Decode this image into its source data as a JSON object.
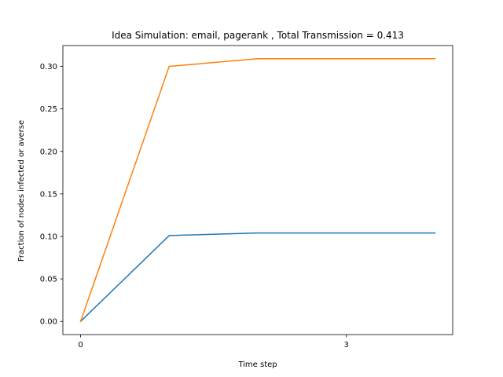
{
  "chart_data": {
    "type": "line",
    "title": "Idea Simulation: email, pagerank , Total Transmission = 0.413",
    "xlabel": "Time step",
    "ylabel": "Fraction of nodes infected or averse",
    "x": [
      0,
      1,
      2,
      3,
      4
    ],
    "xticks": [
      0,
      3
    ],
    "xlim": [
      -0.2,
      4.2
    ],
    "ylim": [
      -0.0155,
      0.3245
    ],
    "yticks": [
      0.0,
      0.05,
      0.1,
      0.15,
      0.2,
      0.25,
      0.3
    ],
    "ytick_labels": [
      "0.00",
      "0.05",
      "0.10",
      "0.15",
      "0.20",
      "0.25",
      "0.30"
    ],
    "grid": false,
    "series": [
      {
        "values": [
          0.0,
          0.101,
          0.104,
          0.104,
          0.104
        ],
        "color": "#1f77b4"
      },
      {
        "values": [
          0.0,
          0.3,
          0.309,
          0.309,
          0.309
        ],
        "color": "#ff7f0e"
      }
    ]
  }
}
